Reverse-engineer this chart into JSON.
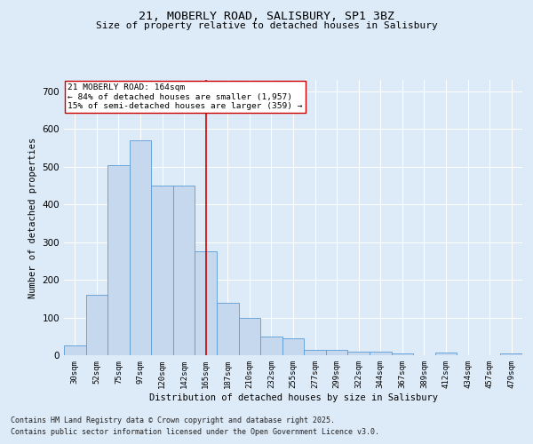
{
  "title_line1": "21, MOBERLY ROAD, SALISBURY, SP1 3BZ",
  "title_line2": "Size of property relative to detached houses in Salisbury",
  "xlabel": "Distribution of detached houses by size in Salisbury",
  "ylabel": "Number of detached properties",
  "categories": [
    "30sqm",
    "52sqm",
    "75sqm",
    "97sqm",
    "120sqm",
    "142sqm",
    "165sqm",
    "187sqm",
    "210sqm",
    "232sqm",
    "255sqm",
    "277sqm",
    "299sqm",
    "322sqm",
    "344sqm",
    "367sqm",
    "389sqm",
    "412sqm",
    "434sqm",
    "457sqm",
    "479sqm"
  ],
  "values": [
    25,
    160,
    505,
    570,
    450,
    450,
    275,
    140,
    100,
    50,
    45,
    15,
    15,
    10,
    10,
    5,
    0,
    8,
    0,
    0,
    5
  ],
  "bar_color": "#c5d8ed",
  "bar_edge_color": "#5b9bd5",
  "vline_position": 6.5,
  "vline_color": "#cc0000",
  "annotation_text": "21 MOBERLY ROAD: 164sqm\n← 84% of detached houses are smaller (1,957)\n15% of semi-detached houses are larger (359) →",
  "annotation_box_color": "#ffffff",
  "annotation_box_edge": "#cc0000",
  "ylim": [
    0,
    730
  ],
  "yticks": [
    0,
    100,
    200,
    300,
    400,
    500,
    600,
    700
  ],
  "background_color": "#ddeaf7",
  "plot_bg_color": "#ddeaf7",
  "grid_color": "#ffffff",
  "footer_line1": "Contains HM Land Registry data © Crown copyright and database right 2025.",
  "footer_line2": "Contains public sector information licensed under the Open Government Licence v3.0."
}
